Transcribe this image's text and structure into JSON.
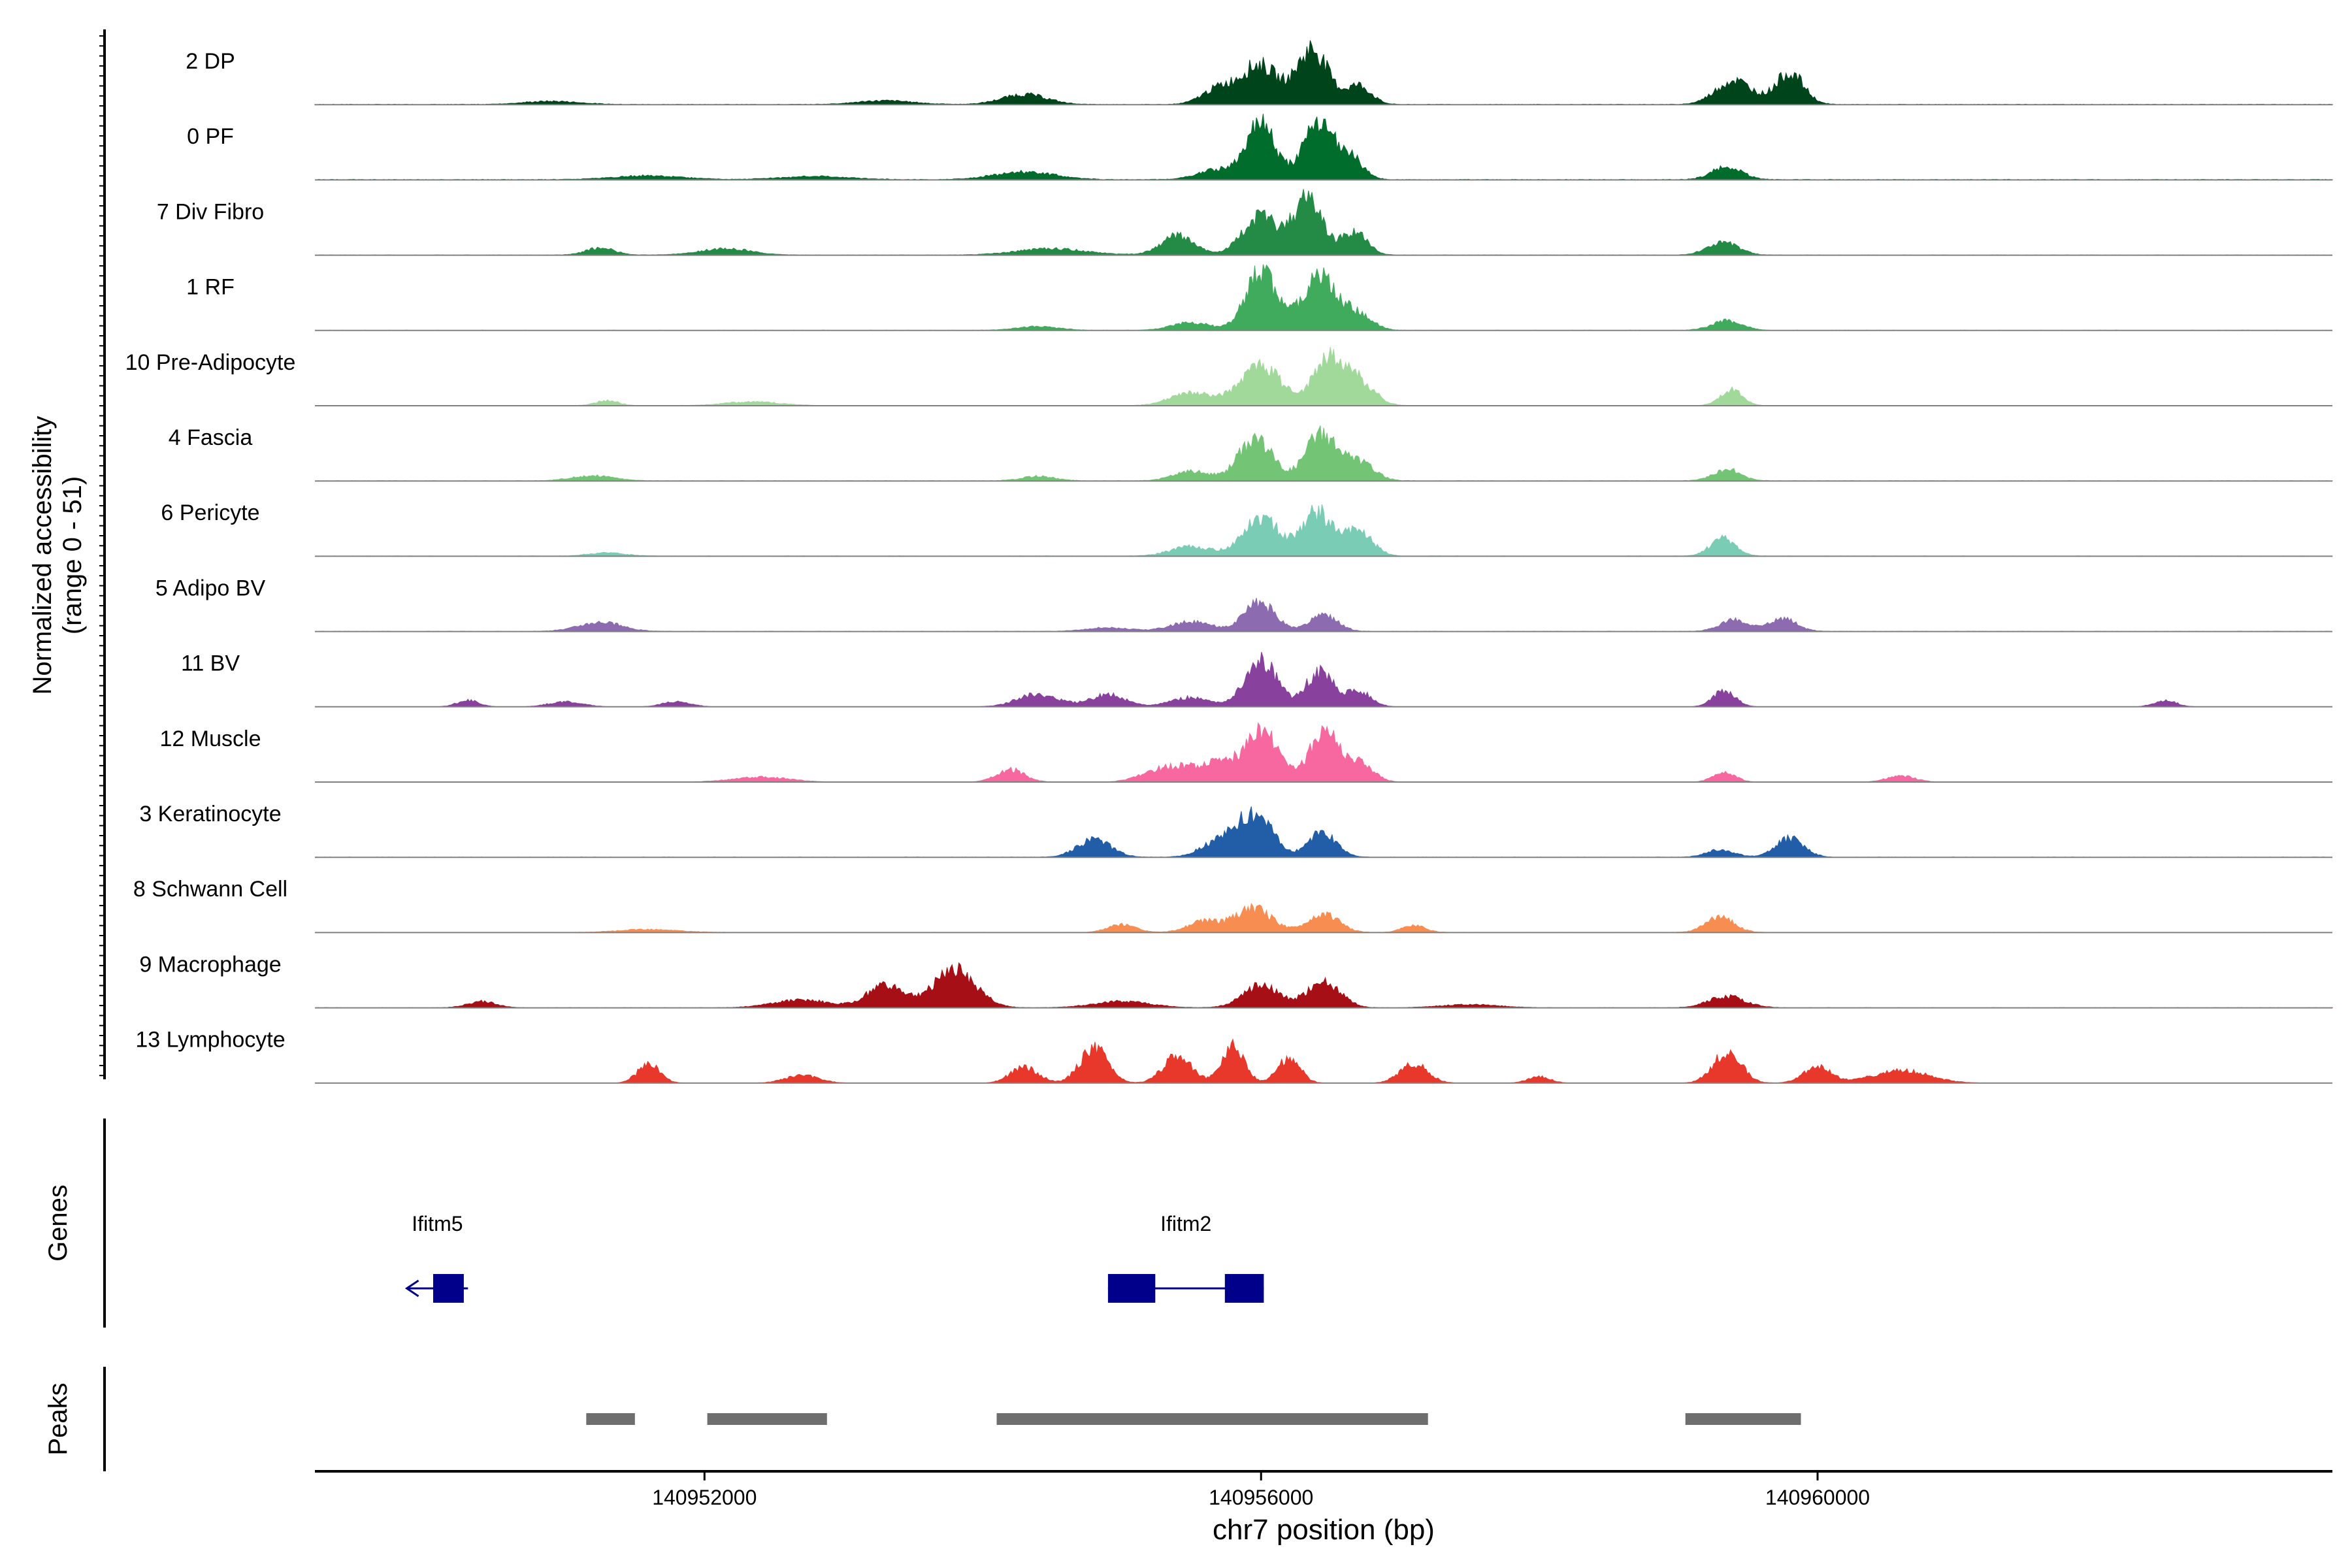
{
  "chart_data": {
    "type": "area",
    "ylabel_line1": "Normalized accessibility",
    "ylabel_line2": "(range 0 - 51)",
    "ylim": [
      0,
      51
    ],
    "xlabel": "chr7 position (bp)",
    "xlim": [
      140949200,
      140963700
    ],
    "x_ticks": [
      {
        "value": 140952000,
        "label": "140952000"
      },
      {
        "value": 140956000,
        "label": "140956000"
      },
      {
        "value": 140960000,
        "label": "140960000"
      }
    ],
    "tracks": [
      {
        "name": "2 DP",
        "color": "#00441b",
        "base": 0.6,
        "peaks": [
          [
            140955990,
            130,
            0.62
          ],
          [
            140956370,
            110,
            0.88
          ],
          [
            140956700,
            90,
            0.3
          ],
          [
            140955700,
            120,
            0.25
          ],
          [
            140954300,
            160,
            0.16
          ],
          [
            140959400,
            130,
            0.38
          ],
          [
            140959800,
            100,
            0.5
          ],
          [
            140953300,
            200,
            0.06
          ],
          [
            140950900,
            200,
            0.05
          ]
        ]
      },
      {
        "name": "0 PF",
        "color": "#006d2c",
        "base": 0.8,
        "peaks": [
          [
            140956000,
            100,
            0.88
          ],
          [
            140956410,
            110,
            0.85
          ],
          [
            140956640,
            90,
            0.35
          ],
          [
            140955700,
            150,
            0.16
          ],
          [
            140954300,
            220,
            0.12
          ],
          [
            140959350,
            110,
            0.2
          ],
          [
            140951600,
            250,
            0.06
          ],
          [
            140952800,
            250,
            0.05
          ]
        ]
      },
      {
        "name": "7 Div Fibro",
        "color": "#238b45",
        "base": 0.5,
        "peaks": [
          [
            140956000,
            130,
            0.6
          ],
          [
            140956340,
            100,
            0.92
          ],
          [
            140956670,
            90,
            0.38
          ],
          [
            140955400,
            120,
            0.3
          ],
          [
            140954500,
            250,
            0.1
          ],
          [
            140959320,
            110,
            0.2
          ],
          [
            140951250,
            100,
            0.12
          ],
          [
            140952150,
            180,
            0.1
          ]
        ]
      },
      {
        "name": "1 RF",
        "color": "#41ab5d",
        "base": 0.4,
        "peaks": [
          [
            140956000,
            110,
            0.92
          ],
          [
            140956420,
            120,
            0.9
          ],
          [
            140956700,
            100,
            0.25
          ],
          [
            140955500,
            140,
            0.12
          ],
          [
            140954400,
            150,
            0.06
          ],
          [
            140959350,
            110,
            0.15
          ]
        ]
      },
      {
        "name": "10 Pre-Adipocyte",
        "color": "#a1d99b",
        "base": 0.3,
        "peaks": [
          [
            140956000,
            150,
            0.6
          ],
          [
            140956480,
            100,
            0.75
          ],
          [
            140956700,
            110,
            0.4
          ],
          [
            140955500,
            150,
            0.2
          ],
          [
            140959380,
            80,
            0.25
          ],
          [
            140951300,
            80,
            0.08
          ],
          [
            140952350,
            200,
            0.06
          ]
        ]
      },
      {
        "name": "4 Fascia",
        "color": "#74c476",
        "base": 0.5,
        "peaks": [
          [
            140955960,
            120,
            0.68
          ],
          [
            140956430,
            110,
            0.75
          ],
          [
            140956700,
            110,
            0.3
          ],
          [
            140955500,
            130,
            0.15
          ],
          [
            140959350,
            100,
            0.18
          ],
          [
            140951200,
            150,
            0.08
          ],
          [
            140954400,
            120,
            0.07
          ]
        ]
      },
      {
        "name": "6 Pericyte",
        "color": "#7bccb5",
        "base": 0.5,
        "peaks": [
          [
            140956000,
            130,
            0.6
          ],
          [
            140956400,
            110,
            0.7
          ],
          [
            140956700,
            100,
            0.4
          ],
          [
            140955500,
            150,
            0.15
          ],
          [
            140959320,
            90,
            0.28
          ],
          [
            140951300,
            130,
            0.05
          ]
        ]
      },
      {
        "name": "5 Adipo BV",
        "color": "#8c6bb1",
        "base": 0.5,
        "peaks": [
          [
            140955990,
            110,
            0.45
          ],
          [
            140956450,
            100,
            0.25
          ],
          [
            140955500,
            150,
            0.15
          ],
          [
            140959400,
            100,
            0.18
          ],
          [
            140959750,
            100,
            0.2
          ],
          [
            140951250,
            150,
            0.15
          ],
          [
            140954900,
            150,
            0.06
          ]
        ]
      },
      {
        "name": "11 BV",
        "color": "#88419d",
        "base": 0.0,
        "peaks": [
          [
            140956000,
            110,
            0.75
          ],
          [
            140956420,
            100,
            0.55
          ],
          [
            140956700,
            90,
            0.25
          ],
          [
            140954400,
            150,
            0.2
          ],
          [
            140954900,
            120,
            0.2
          ],
          [
            140955500,
            150,
            0.15
          ],
          [
            140959330,
            80,
            0.26
          ],
          [
            140950300,
            80,
            0.1
          ],
          [
            140951000,
            120,
            0.08
          ],
          [
            140951800,
            100,
            0.08
          ],
          [
            140962500,
            80,
            0.1
          ]
        ]
      },
      {
        "name": "12 Muscle",
        "color": "#f768a1",
        "base": 0.0,
        "peaks": [
          [
            140956020,
            120,
            0.7
          ],
          [
            140956450,
            100,
            0.8
          ],
          [
            140956700,
            100,
            0.3
          ],
          [
            140955700,
            200,
            0.3
          ],
          [
            140955300,
            150,
            0.2
          ],
          [
            140954200,
            100,
            0.2
          ],
          [
            140959330,
            80,
            0.15
          ],
          [
            140952400,
            200,
            0.08
          ],
          [
            140960600,
            100,
            0.1
          ]
        ]
      },
      {
        "name": "3 Keratinocyte",
        "color": "#225ea8",
        "base": 0.4,
        "peaks": [
          [
            140955960,
            120,
            0.68
          ],
          [
            140956440,
            100,
            0.4
          ],
          [
            140954800,
            120,
            0.28
          ],
          [
            140955700,
            130,
            0.25
          ],
          [
            140959800,
            100,
            0.3
          ],
          [
            140959300,
            100,
            0.12
          ]
        ]
      },
      {
        "name": "8 Schwann Cell",
        "color": "#f88d52",
        "base": 0.4,
        "peaks": [
          [
            140955950,
            130,
            0.38
          ],
          [
            140956450,
            110,
            0.3
          ],
          [
            140955600,
            120,
            0.18
          ],
          [
            140959300,
            100,
            0.25
          ],
          [
            140955000,
            100,
            0.12
          ],
          [
            140957100,
            80,
            0.12
          ],
          [
            140951600,
            200,
            0.05
          ]
        ]
      },
      {
        "name": "9 Macrophage",
        "color": "#a50f15",
        "base": 0.4,
        "peaks": [
          [
            140953800,
            150,
            0.6
          ],
          [
            140953300,
            130,
            0.35
          ],
          [
            140956000,
            130,
            0.35
          ],
          [
            140956450,
            120,
            0.4
          ],
          [
            140952700,
            200,
            0.12
          ],
          [
            140955000,
            200,
            0.1
          ],
          [
            140959350,
            130,
            0.18
          ],
          [
            140950400,
            100,
            0.1
          ],
          [
            140957500,
            200,
            0.05
          ]
        ]
      },
      {
        "name": "13 Lymphocyte",
        "color": "#e7382b",
        "base": 0.0,
        "peaks": [
          [
            140954800,
            100,
            0.55
          ],
          [
            140955400,
            100,
            0.45
          ],
          [
            140955800,
            80,
            0.6
          ],
          [
            140956200,
            80,
            0.4
          ],
          [
            140959350,
            100,
            0.5
          ],
          [
            140954300,
            100,
            0.25
          ],
          [
            140951600,
            80,
            0.3
          ],
          [
            140957100,
            100,
            0.3
          ],
          [
            140960000,
            100,
            0.25
          ],
          [
            140960600,
            200,
            0.2
          ],
          [
            140952700,
            120,
            0.12
          ],
          [
            140958000,
            80,
            0.1
          ]
        ]
      }
    ],
    "genes_label": "Genes",
    "genes": [
      {
        "name": "Ifitm5",
        "strand": "-",
        "start": 140949860,
        "end": 140950300,
        "exons": [
          [
            140950050,
            140950270
          ]
        ]
      },
      {
        "name": "Ifitm2",
        "strand": "+",
        "start": 140954900,
        "end": 140956020,
        "exons": [
          [
            140954900,
            140955240
          ],
          [
            140955740,
            140956020
          ]
        ]
      }
    ],
    "peaks_label": "Peaks",
    "peak_regions": [
      [
        140951150,
        140951500
      ],
      [
        140952020,
        140952880
      ],
      [
        140954100,
        140957200
      ],
      [
        140959050,
        140959880
      ]
    ],
    "colors": {
      "gene": "#00008b",
      "peak_region": "#6e6e6e",
      "baseline": "#808080",
      "axis": "#000000"
    }
  }
}
